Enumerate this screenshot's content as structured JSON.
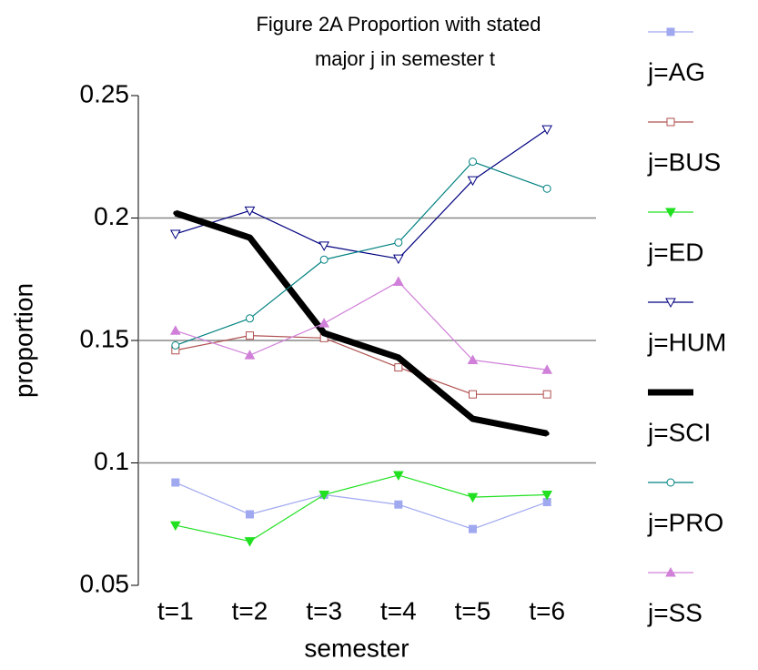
{
  "chart_data": {
    "type": "line",
    "title": [
      "Figure 2A    Proportion with stated",
      "major j in semester t"
    ],
    "x_label": "semester",
    "y_label": "proportion",
    "categories": [
      "t=1",
      "t=2",
      "t=3",
      "t=4",
      "t=5",
      "t=6"
    ],
    "ylim": [
      0.05,
      0.25
    ],
    "yticks": [
      0.05,
      0.1,
      0.15,
      0.2,
      0.25
    ],
    "grid": true,
    "legend": "right",
    "series": [
      {
        "name": "j=AG",
        "color": "#a0a8f0",
        "marker": "square",
        "values": [
          0.092,
          0.079,
          0.087,
          0.083,
          0.073,
          0.084
        ]
      },
      {
        "name": "j=BUS",
        "color": "#b05050",
        "marker": "square-open",
        "values": [
          0.146,
          0.152,
          0.151,
          0.139,
          0.128,
          0.128
        ]
      },
      {
        "name": "j=ED",
        "color": "#20e020",
        "marker": "triangle-down",
        "values": [
          0.0745,
          0.068,
          0.087,
          0.095,
          0.086,
          0.087
        ]
      },
      {
        "name": "j=HUM",
        "color": "#000080",
        "marker": "triangle-down-open",
        "values": [
          0.1935,
          0.203,
          0.1887,
          0.1834,
          0.2154,
          0.2362
        ]
      },
      {
        "name": "j=SCI",
        "color": "#000000",
        "marker": "dot",
        "width": 7,
        "values": [
          0.202,
          0.192,
          0.153,
          0.143,
          0.118,
          0.112
        ]
      },
      {
        "name": "j=PRO",
        "color": "#008080",
        "marker": "circle-open",
        "values": [
          0.148,
          0.159,
          0.183,
          0.19,
          0.223,
          0.212
        ]
      },
      {
        "name": "j=SS",
        "color": "#d080d8",
        "marker": "triangle-up",
        "values": [
          0.154,
          0.144,
          0.157,
          0.174,
          0.142,
          0.138
        ]
      }
    ]
  }
}
